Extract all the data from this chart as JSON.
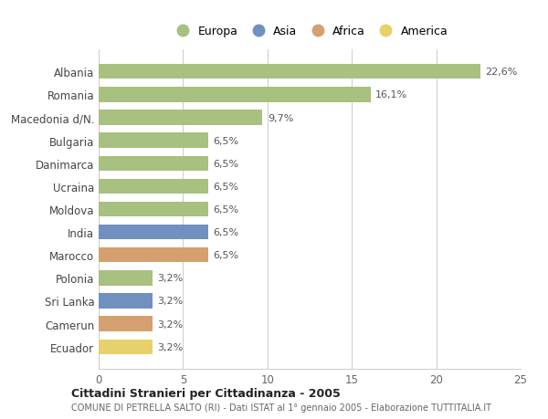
{
  "categories": [
    "Albania",
    "Romania",
    "Macedonia d/N.",
    "Bulgaria",
    "Danimarca",
    "Ucraina",
    "Moldova",
    "India",
    "Marocco",
    "Polonia",
    "Sri Lanka",
    "Camerun",
    "Ecuador"
  ],
  "values": [
    22.6,
    16.1,
    9.7,
    6.5,
    6.5,
    6.5,
    6.5,
    6.5,
    6.5,
    3.2,
    3.2,
    3.2,
    3.2
  ],
  "labels": [
    "22,6%",
    "16,1%",
    "9,7%",
    "6,5%",
    "6,5%",
    "6,5%",
    "6,5%",
    "6,5%",
    "6,5%",
    "3,2%",
    "3,2%",
    "3,2%",
    "3,2%"
  ],
  "continents": [
    "Europa",
    "Europa",
    "Europa",
    "Europa",
    "Europa",
    "Europa",
    "Europa",
    "Asia",
    "Africa",
    "Europa",
    "Asia",
    "Africa",
    "America"
  ],
  "colors": {
    "Europa": "#a8c080",
    "Asia": "#7090c0",
    "Africa": "#d4a070",
    "America": "#e8d06a"
  },
  "legend_order": [
    "Europa",
    "Asia",
    "Africa",
    "America"
  ],
  "title": "Cittadini Stranieri per Cittadinanza - 2005",
  "subtitle": "COMUNE DI PETRELLA SALTO (RI) - Dati ISTAT al 1° gennaio 2005 - Elaborazione TUTTITALIA.IT",
  "xlim": [
    0,
    25
  ],
  "xticks": [
    0,
    5,
    10,
    15,
    20,
    25
  ],
  "background_color": "#ffffff",
  "bar_height": 0.65,
  "grid_color": "#cccccc"
}
